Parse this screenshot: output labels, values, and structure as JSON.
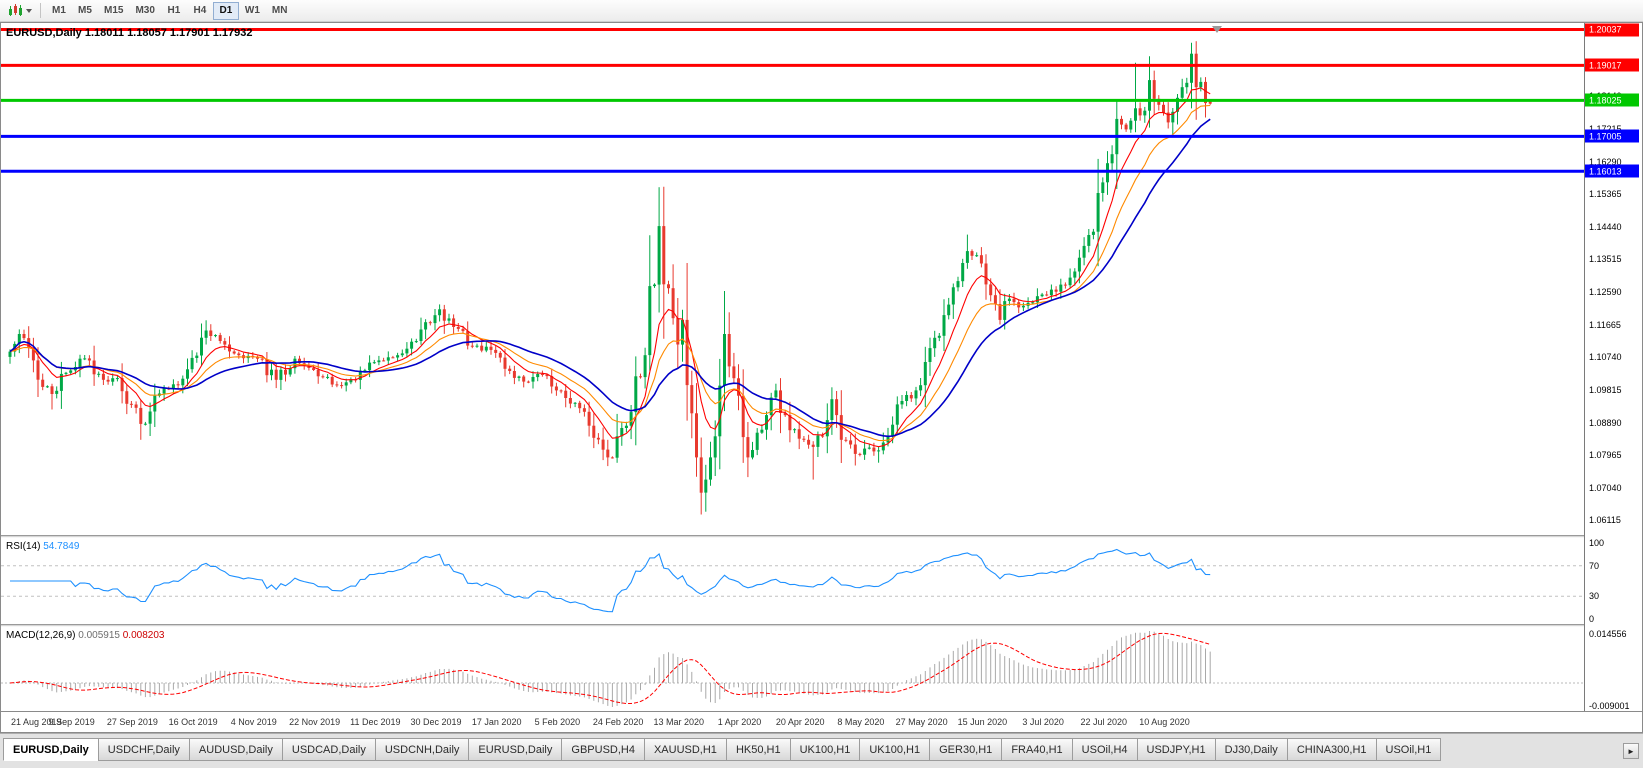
{
  "toolbar": {
    "timeframes": [
      "M1",
      "M5",
      "M15",
      "M30",
      "H1",
      "H4",
      "D1",
      "W1",
      "MN"
    ],
    "active_timeframe": "D1"
  },
  "chart": {
    "header": "EURUSD,Daily 1.18011 1.18057 1.17901 1.17932"
  },
  "rsi": {
    "name": "RSI(14)",
    "value": "54.7849",
    "period": 14,
    "color": "#1E90FF",
    "levels": [
      70,
      30
    ],
    "axis_labels": [
      "100",
      "70",
      "30",
      "0"
    ],
    "axis_values": [
      100,
      70,
      30,
      0
    ]
  },
  "macd": {
    "name": "MACD(12,26,9)",
    "value_main": "0.005915",
    "value_signal": "0.008203",
    "fast": 12,
    "slow": 26,
    "signal": 9,
    "axis_max_label": "0.014556",
    "axis_min_label": "-0.009001",
    "histogram_color": "#a9a9a9",
    "signal_color": "#ff0000"
  },
  "tabs": {
    "items": [
      "EURUSD,Daily",
      "USDCHF,Daily",
      "AUDUSD,Daily",
      "USDCAD,Daily",
      "USDCNH,Daily",
      "EURUSD,Daily",
      "GBPUSD,H4",
      "XAUUSD,H1",
      "HK50,H1",
      "UK100,H1",
      "UK100,H1",
      "GER30,H1",
      "FRA40,H1",
      "USOil,H4",
      "USDJPY,H1",
      "DJ30,Daily",
      "CHINA300,H1",
      "USOil,H1"
    ],
    "active_index": 0,
    "scroll_right": "►"
  },
  "chart_data": {
    "type": "candlestick",
    "title": "EURUSD,Daily",
    "timeframe": "D1",
    "num_candles": 258,
    "last_ohlc": {
      "open": 1.18011,
      "high": 1.18057,
      "low": 1.17901,
      "close": 1.17932
    },
    "up_color": "#00A846",
    "down_color": "#E8392E",
    "x_axis": {
      "labels": [
        "21 Aug 2019",
        "9 Sep 2019",
        "27 Sep 2019",
        "16 Oct 2019",
        "4 Nov 2019",
        "22 Nov 2019",
        "11 Dec 2019",
        "30 Dec 2019",
        "17 Jan 2020",
        "5 Feb 2020",
        "24 Feb 2020",
        "13 Mar 2020",
        "1 Apr 2020",
        "20 Apr 2020",
        "8 May 2020",
        "27 May 2020",
        "15 Jun 2020",
        "3 Jul 2020",
        "22 Jul 2020",
        "10 Aug 2020"
      ],
      "label_candle_indices": [
        0,
        13,
        26,
        39,
        52,
        65,
        78,
        91,
        104,
        117,
        130,
        143,
        156,
        169,
        182,
        195,
        208,
        221,
        234,
        247
      ]
    },
    "y_axis": {
      "min": 1.057,
      "max": 1.2022,
      "ticks": [
        "1.19065",
        "1.18140",
        "1.17215",
        "1.16290",
        "1.15365",
        "1.14440",
        "1.13515",
        "1.12590",
        "1.11665",
        "1.10740",
        "1.09815",
        "1.08890",
        "1.07965",
        "1.07040",
        "1.06115"
      ]
    },
    "horizontal_lines": [
      {
        "price": 1.20037,
        "label": "1.20037",
        "color": "#FF0000",
        "width": 3
      },
      {
        "price": 1.19017,
        "label": "1.19017",
        "color": "#FF0000",
        "width": 3
      },
      {
        "price": 1.18025,
        "label": "1.18025",
        "color": "#00C800",
        "width": 3
      },
      {
        "price": 1.17005,
        "label": "1.17005",
        "color": "#0000FF",
        "width": 3
      },
      {
        "price": 1.16013,
        "label": "1.16013",
        "color": "#0000FF",
        "width": 3
      }
    ],
    "moving_averages": [
      {
        "period": 8,
        "type": "ema",
        "color": "#FF0000"
      },
      {
        "period": 16,
        "type": "ema",
        "color": "#FF8A00"
      },
      {
        "period": 35,
        "type": "wma",
        "color": "#0000C8"
      }
    ],
    "close_anchors": [
      [
        0,
        1.109
      ],
      [
        2,
        1.114
      ],
      [
        4,
        1.11
      ],
      [
        7,
        1.099
      ],
      [
        9,
        1.097
      ],
      [
        12,
        1.103
      ],
      [
        15,
        1.107
      ],
      [
        17,
        1.1065
      ],
      [
        20,
        1.101
      ],
      [
        23,
        1.1015
      ],
      [
        26,
        1.094
      ],
      [
        28,
        1.0885
      ],
      [
        31,
        1.0965
      ],
      [
        34,
        1.0985
      ],
      [
        38,
        1.104
      ],
      [
        42,
        1.115
      ],
      [
        45,
        1.112
      ],
      [
        49,
        1.108
      ],
      [
        53,
        1.107
      ],
      [
        57,
        1.101
      ],
      [
        61,
        1.107
      ],
      [
        66,
        1.102
      ],
      [
        70,
        1.0995
      ],
      [
        74,
        1.101
      ],
      [
        78,
        1.106
      ],
      [
        83,
        1.108
      ],
      [
        87,
        1.112
      ],
      [
        92,
        1.121
      ],
      [
        95,
        1.116
      ],
      [
        99,
        1.1105
      ],
      [
        103,
        1.1095
      ],
      [
        107,
        1.1035
      ],
      [
        110,
        1.1005
      ],
      [
        114,
        1.1025
      ],
      [
        117,
        1.098
      ],
      [
        121,
        1.0945
      ],
      [
        124,
        1.088
      ],
      [
        128,
        1.079
      ],
      [
        130,
        1.085
      ],
      [
        132,
        1.088
      ],
      [
        134,
        1.102
      ],
      [
        136,
        1.108
      ],
      [
        138,
        1.128
      ],
      [
        139,
        1.1446
      ],
      [
        140,
        1.1281
      ],
      [
        141,
        1.127
      ],
      [
        142,
        1.1185
      ],
      [
        143,
        1.111
      ],
      [
        144,
        1.118
      ],
      [
        145,
        1.0995
      ],
      [
        146,
        1.0915
      ],
      [
        147,
        1.079
      ],
      [
        148,
        1.069
      ],
      [
        149,
        1.0727
      ],
      [
        150,
        1.079
      ],
      [
        151,
        1.085
      ],
      [
        153,
        1.114
      ],
      [
        154,
        1.1048
      ],
      [
        156,
        1.0965
      ],
      [
        158,
        1.079
      ],
      [
        160,
        1.086
      ],
      [
        162,
        1.091
      ],
      [
        164,
        1.098
      ],
      [
        166,
        1.091
      ],
      [
        168,
        1.087
      ],
      [
        170,
        1.084
      ],
      [
        172,
        1.082
      ],
      [
        174,
        1.085
      ],
      [
        176,
        1.0955
      ],
      [
        177,
        1.091
      ],
      [
        178,
        1.084
      ],
      [
        181,
        1.08
      ],
      [
        183,
        1.0815
      ],
      [
        186,
        1.081
      ],
      [
        188,
        1.085
      ],
      [
        191,
        1.095
      ],
      [
        194,
        1.098
      ],
      [
        197,
        1.11
      ],
      [
        199,
        1.1135
      ],
      [
        203,
        1.129
      ],
      [
        205,
        1.1375
      ],
      [
        208,
        1.134
      ],
      [
        210,
        1.125
      ],
      [
        212,
        1.118
      ],
      [
        214,
        1.124
      ],
      [
        217,
        1.122
      ],
      [
        219,
        1.123
      ],
      [
        222,
        1.125
      ],
      [
        225,
        1.128
      ],
      [
        227,
        1.13
      ],
      [
        230,
        1.139
      ],
      [
        232,
        1.143
      ],
      [
        234,
        1.157
      ],
      [
        236,
        1.165
      ],
      [
        237,
        1.175
      ],
      [
        239,
        1.172
      ],
      [
        241,
        1.178
      ],
      [
        242,
        1.176
      ],
      [
        244,
        1.186
      ],
      [
        246,
        1.179
      ],
      [
        248,
        1.174
      ],
      [
        250,
        1.181
      ],
      [
        251,
        1.184
      ],
      [
        253,
        1.1935
      ],
      [
        254,
        1.184
      ],
      [
        255,
        1.1855
      ],
      [
        256,
        1.1795
      ],
      [
        257,
        1.17932
      ]
    ],
    "high_overrides": [
      [
        42,
        1.1179
      ],
      [
        139,
        1.1495
      ],
      [
        205,
        1.1422
      ],
      [
        241,
        1.1909
      ],
      [
        253,
        1.1966
      ]
    ],
    "low_overrides": [
      [
        9,
        1.0926
      ],
      [
        28,
        1.0879
      ],
      [
        128,
        1.0778
      ],
      [
        148,
        1.0655
      ],
      [
        149,
        1.0636
      ],
      [
        158,
        1.0768
      ],
      [
        172,
        1.0727
      ],
      [
        181,
        1.0767
      ],
      [
        186,
        1.0775
      ],
      [
        256,
        1.1754
      ]
    ],
    "indicators": [
      {
        "name": "RSI",
        "params": "14",
        "value": 54.7849
      },
      {
        "name": "MACD",
        "params": "12,26,9",
        "values": [
          0.005915,
          0.008203
        ]
      }
    ]
  }
}
